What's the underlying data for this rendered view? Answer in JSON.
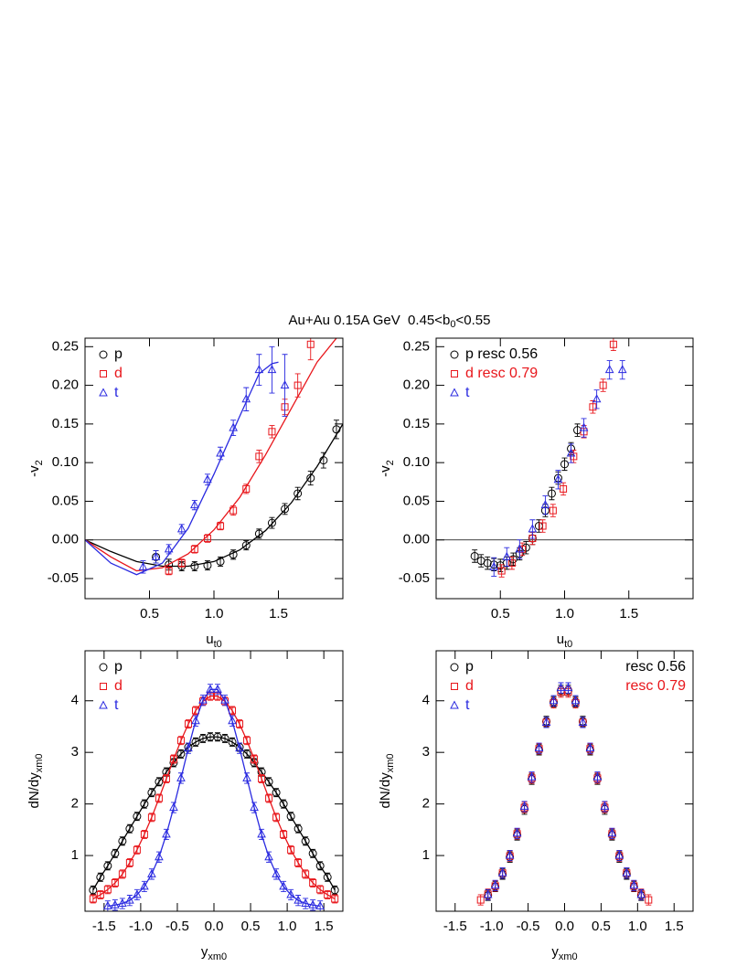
{
  "figure_title": {
    "text": "Au+Au 0.15A GeV  0.45<b",
    "sub": "0",
    "tail": "<0.55"
  },
  "chart_data": [
    {
      "type": "scatter",
      "xlabel": {
        "text": "u",
        "sub": "t0"
      },
      "ylabel": {
        "text": "-v",
        "sub": "2"
      },
      "xlim": [
        0,
        2.0
      ],
      "ylim": [
        -0.076,
        0.261
      ],
      "xticks": [
        0.5,
        {
          "value": 1.0,
          "label": "1.0"
        },
        1.5
      ],
      "yticks": [
        -0.05,
        {
          "value": 0,
          "label": "0.00"
        },
        0.05,
        {
          "value": 0.1,
          "label": "0.10"
        },
        0.15,
        {
          "value": 0.2,
          "label": "0.20"
        },
        0.25
      ],
      "zero_line": true,
      "legend": "upper left",
      "series": [
        {
          "name": "p",
          "color": "#000000",
          "marker": "circle",
          "x": [
            0.55,
            0.65,
            0.75,
            0.85,
            0.95,
            1.05,
            1.15,
            1.25,
            1.35,
            1.45,
            1.55,
            1.65,
            1.75,
            1.85,
            1.95
          ],
          "values": [
            -0.022,
            -0.032,
            -0.034,
            -0.034,
            -0.033,
            -0.028,
            -0.019,
            -0.007,
            0.008,
            0.022,
            0.04,
            0.06,
            0.08,
            0.103,
            0.143
          ],
          "errors": [
            0.008,
            0.007,
            0.006,
            0.006,
            0.006,
            0.006,
            0.006,
            0.006,
            0.006,
            0.007,
            0.007,
            0.008,
            0.009,
            0.01,
            0.012
          ],
          "fit": {
            "x": [
              0,
              0.2,
              0.4,
              0.6,
              0.8,
              1.0,
              1.2,
              1.4,
              1.6,
              1.8,
              2.0
            ],
            "values": [
              0,
              -0.015,
              -0.028,
              -0.034,
              -0.034,
              -0.028,
              -0.013,
              0.012,
              0.048,
              0.095,
              0.15
            ]
          }
        },
        {
          "name": "d",
          "color": "#e8161b",
          "marker": "square",
          "x": [
            0.65,
            0.75,
            0.85,
            0.95,
            1.05,
            1.15,
            1.25,
            1.35,
            1.45,
            1.55,
            1.65,
            1.75
          ],
          "values": [
            -0.04,
            -0.03,
            -0.012,
            0.002,
            0.018,
            0.038,
            0.066,
            0.108,
            0.14,
            0.172,
            0.2,
            0.253
          ],
          "errors": [
            0.005,
            0.005,
            0.005,
            0.005,
            0.005,
            0.006,
            0.006,
            0.008,
            0.008,
            0.01,
            0.015,
            0.02
          ],
          "fit": {
            "x": [
              0,
              0.2,
              0.4,
              0.6,
              0.8,
              1.0,
              1.2,
              1.4,
              1.6,
              1.8,
              1.95
            ],
            "values": [
              0,
              -0.022,
              -0.04,
              -0.036,
              -0.018,
              0.013,
              0.055,
              0.11,
              0.17,
              0.23,
              0.261
            ]
          }
        },
        {
          "name": "t",
          "color": "#2a2ae0",
          "marker": "triangle",
          "x": [
            0.45,
            0.55,
            0.65,
            0.75,
            0.85,
            0.95,
            1.05,
            1.15,
            1.25,
            1.35,
            1.45,
            1.55
          ],
          "values": [
            -0.035,
            -0.022,
            -0.012,
            0.014,
            0.045,
            0.078,
            0.112,
            0.145,
            0.182,
            0.22,
            0.22,
            0.2
          ],
          "errors": [
            0.008,
            0.008,
            0.006,
            0.006,
            0.006,
            0.007,
            0.008,
            0.01,
            0.015,
            0.02,
            0.03,
            0.04
          ],
          "fit": {
            "x": [
              0,
              0.2,
              0.4,
              0.6,
              0.8,
              1.0,
              1.2,
              1.35,
              1.45,
              1.5
            ],
            "values": [
              0,
              -0.03,
              -0.045,
              -0.03,
              0.015,
              0.085,
              0.16,
              0.215,
              0.228,
              0.23
            ]
          }
        }
      ]
    },
    {
      "type": "scatter",
      "xlabel": {
        "text": "u",
        "sub": "t0"
      },
      "ylabel": {
        "text": "-v",
        "sub": "2"
      },
      "xlim": [
        0,
        2.0
      ],
      "ylim": [
        -0.076,
        0.261
      ],
      "xticks": [
        0.5,
        {
          "value": 1.0,
          "label": "1.0"
        },
        1.5
      ],
      "yticks": [
        -0.05,
        {
          "value": 0,
          "label": "0.00"
        },
        0.05,
        {
          "value": 0.1,
          "label": "0.10"
        },
        0.15,
        {
          "value": 0.2,
          "label": "0.20"
        },
        0.25
      ],
      "zero_line": true,
      "legend": "upper left",
      "series": [
        {
          "name": "p resc 0.56",
          "color": "#000000",
          "marker": "circle",
          "error": 0.008,
          "x": [
            0.3,
            0.35,
            0.4,
            0.45,
            0.5,
            0.55,
            0.6,
            0.65,
            0.7,
            0.75,
            0.8,
            0.85,
            0.9,
            0.95,
            1.0,
            1.05,
            1.1
          ],
          "values": [
            -0.021,
            -0.027,
            -0.03,
            -0.032,
            -0.033,
            -0.03,
            -0.025,
            -0.018,
            -0.01,
            0.002,
            0.018,
            0.038,
            0.06,
            0.08,
            0.098,
            0.118,
            0.142
          ]
        },
        {
          "name": "d resc 0.79",
          "color": "#e8161b",
          "marker": "square",
          "error": 0.008,
          "x": [
            0.51,
            0.59,
            0.67,
            0.75,
            0.83,
            0.91,
            0.99,
            1.07,
            1.15,
            1.22,
            1.3,
            1.38
          ],
          "values": [
            -0.04,
            -0.03,
            -0.012,
            0.002,
            0.018,
            0.038,
            0.066,
            0.108,
            0.14,
            0.172,
            0.2,
            0.253
          ]
        },
        {
          "name": "t",
          "color": "#2a2ae0",
          "marker": "triangle",
          "error": 0.012,
          "x": [
            0.45,
            0.55,
            0.65,
            0.75,
            0.85,
            0.95,
            1.05,
            1.15,
            1.25,
            1.35,
            1.45
          ],
          "values": [
            -0.035,
            -0.022,
            -0.012,
            0.014,
            0.045,
            0.078,
            0.112,
            0.145,
            0.182,
            0.22,
            0.22
          ]
        }
      ]
    },
    {
      "type": "scatter",
      "xlabel": {
        "text": "y",
        "sub": "xm0"
      },
      "ylabel": {
        "text": "dN/dy",
        "sub": "xm0"
      },
      "xlim": [
        -1.76,
        1.76
      ],
      "ylim": [
        -0.08,
        4.97
      ],
      "xticks": [
        -1.5,
        {
          "value": -1.0,
          "label": "-1.0"
        },
        -0.5,
        {
          "value": 0,
          "label": "0.0"
        },
        0.5,
        {
          "value": 1.0,
          "label": "1.0"
        },
        1.5
      ],
      "yticks": [
        1,
        2,
        3,
        4
      ],
      "legend": "upper left",
      "series": [
        {
          "name": "p",
          "color": "#000000",
          "marker": "circle",
          "error": 0.08,
          "line": true,
          "x": [
            -1.65,
            -1.55,
            -1.45,
            -1.35,
            -1.25,
            -1.15,
            -1.05,
            -0.95,
            -0.85,
            -0.75,
            -0.65,
            -0.55,
            -0.45,
            -0.35,
            -0.25,
            -0.15,
            -0.05,
            0.05,
            0.15,
            0.25,
            0.35,
            0.45,
            0.55,
            0.65,
            0.75,
            0.85,
            0.95,
            1.05,
            1.15,
            1.25,
            1.35,
            1.45,
            1.55,
            1.65
          ],
          "values": [
            0.33,
            0.58,
            0.8,
            1.04,
            1.28,
            1.52,
            1.76,
            2.0,
            2.22,
            2.43,
            2.62,
            2.8,
            2.97,
            3.1,
            3.2,
            3.27,
            3.3,
            3.3,
            3.27,
            3.2,
            3.1,
            2.97,
            2.8,
            2.62,
            2.43,
            2.22,
            2.0,
            1.76,
            1.52,
            1.28,
            1.04,
            0.8,
            0.58,
            0.33
          ]
        },
        {
          "name": "d",
          "color": "#e8161b",
          "marker": "square",
          "error": 0.08,
          "line": true,
          "x": [
            -1.65,
            -1.55,
            -1.45,
            -1.35,
            -1.25,
            -1.15,
            -1.05,
            -0.95,
            -0.85,
            -0.75,
            -0.65,
            -0.55,
            -0.45,
            -0.35,
            -0.25,
            -0.15,
            -0.05,
            0.05,
            0.15,
            0.25,
            0.35,
            0.45,
            0.55,
            0.65,
            0.75,
            0.85,
            0.95,
            1.05,
            1.15,
            1.25,
            1.35,
            1.45,
            1.55,
            1.65
          ],
          "values": [
            0.16,
            0.24,
            0.34,
            0.47,
            0.64,
            0.86,
            1.11,
            1.41,
            1.74,
            2.11,
            2.49,
            2.87,
            3.23,
            3.55,
            3.81,
            3.99,
            4.09,
            4.09,
            3.99,
            3.81,
            3.55,
            3.23,
            2.87,
            2.49,
            2.11,
            1.74,
            1.41,
            1.11,
            0.86,
            0.64,
            0.47,
            0.34,
            0.24,
            0.16
          ]
        },
        {
          "name": "t",
          "color": "#2a2ae0",
          "marker": "triangle",
          "error": 0.1,
          "line": true,
          "x": [
            -1.45,
            -1.35,
            -1.25,
            -1.15,
            -1.05,
            -0.95,
            -0.85,
            -0.75,
            -0.65,
            -0.55,
            -0.45,
            -0.35,
            -0.25,
            -0.15,
            -0.05,
            0.05,
            0.15,
            0.25,
            0.35,
            0.45,
            0.55,
            0.65,
            0.75,
            0.85,
            0.95,
            1.05,
            1.15,
            1.25,
            1.35,
            1.45
          ],
          "values": [
            0.02,
            0.04,
            0.07,
            0.13,
            0.24,
            0.4,
            0.64,
            0.97,
            1.41,
            1.93,
            2.5,
            3.08,
            3.61,
            4.01,
            4.22,
            4.22,
            4.01,
            3.61,
            3.08,
            2.5,
            1.93,
            1.41,
            0.97,
            0.64,
            0.4,
            0.24,
            0.13,
            0.07,
            0.04,
            0.02
          ]
        }
      ]
    },
    {
      "type": "scatter",
      "xlabel": {
        "text": "y",
        "sub": "xm0"
      },
      "ylabel": {
        "text": "dN/dy",
        "sub": "xm0"
      },
      "xlim": [
        -1.76,
        1.76
      ],
      "ylim": [
        -0.08,
        4.97
      ],
      "xticks": [
        -1.5,
        {
          "value": -1.0,
          "label": "-1.0"
        },
        -0.5,
        {
          "value": 0,
          "label": "0.0"
        },
        0.5,
        {
          "value": 1.0,
          "label": "1.0"
        },
        1.5
      ],
      "yticks": [
        1,
        2,
        3,
        4
      ],
      "legend": "upper left",
      "annotations": [
        {
          "text": "resc 0.56",
          "color": "#000000"
        },
        {
          "text": "resc 0.79",
          "color": "#e8161b"
        }
      ],
      "series": [
        {
          "name": "p",
          "color": "#000000",
          "marker": "circle",
          "error": 0.1,
          "x": [
            -1.05,
            -0.95,
            -0.85,
            -0.75,
            -0.65,
            -0.55,
            -0.45,
            -0.35,
            -0.25,
            -0.15,
            -0.05,
            0.05,
            0.15,
            0.25,
            0.35,
            0.45,
            0.55,
            0.65,
            0.75,
            0.85,
            0.95,
            1.05
          ],
          "values": [
            0.23,
            0.4,
            0.64,
            0.97,
            1.4,
            1.9,
            2.48,
            3.05,
            3.6,
            3.98,
            4.2,
            4.2,
            3.98,
            3.6,
            3.05,
            2.48,
            1.9,
            1.4,
            0.97,
            0.64,
            0.4,
            0.23
          ]
        },
        {
          "name": "d",
          "color": "#e8161b",
          "marker": "square",
          "error": 0.1,
          "x": [
            -1.15,
            -1.05,
            -0.95,
            -0.85,
            -0.75,
            -0.65,
            -0.55,
            -0.45,
            -0.35,
            -0.25,
            -0.15,
            -0.05,
            0.05,
            0.15,
            0.25,
            0.35,
            0.45,
            0.55,
            0.65,
            0.75,
            0.85,
            0.95,
            1.05,
            1.15
          ],
          "values": [
            0.14,
            0.25,
            0.41,
            0.66,
            0.99,
            1.42,
            1.93,
            2.5,
            3.07,
            3.58,
            3.96,
            4.17,
            4.17,
            3.96,
            3.58,
            3.07,
            2.5,
            1.93,
            1.42,
            0.99,
            0.66,
            0.41,
            0.25,
            0.14
          ]
        },
        {
          "name": "t",
          "color": "#2a2ae0",
          "marker": "triangle",
          "error": 0.1,
          "x": [
            -1.05,
            -0.95,
            -0.85,
            -0.75,
            -0.65,
            -0.55,
            -0.45,
            -0.35,
            -0.25,
            -0.15,
            -0.05,
            0.05,
            0.15,
            0.25,
            0.35,
            0.45,
            0.55,
            0.65,
            0.75,
            0.85,
            0.95,
            1.05
          ],
          "values": [
            0.24,
            0.42,
            0.66,
            1.0,
            1.43,
            1.95,
            2.52,
            3.08,
            3.58,
            4.0,
            4.25,
            4.25,
            4.0,
            3.58,
            3.08,
            2.52,
            1.95,
            1.43,
            1.0,
            0.66,
            0.42,
            0.24
          ]
        }
      ]
    }
  ]
}
